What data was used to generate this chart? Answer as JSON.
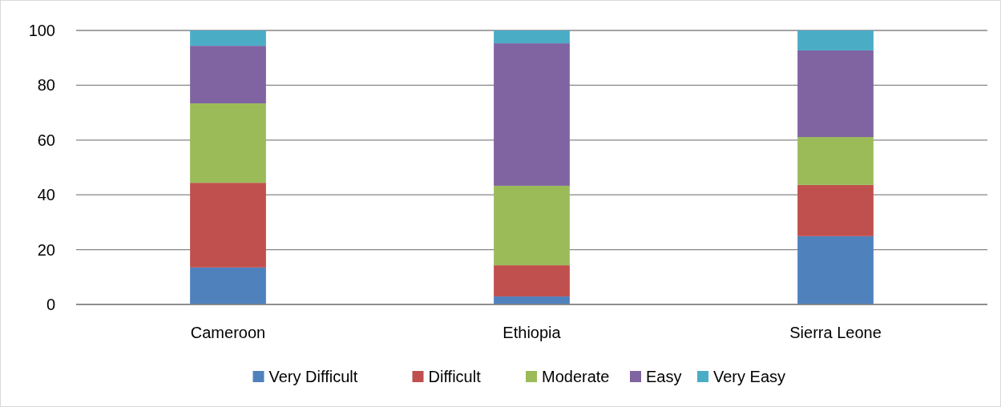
{
  "chart_data": {
    "type": "bar",
    "stacked": true,
    "categories": [
      "Cameroon",
      "Ethiopia",
      "Sierra Leone"
    ],
    "series": [
      {
        "name": "Very Difficult",
        "color": "#4f81bd",
        "values": [
          13.5,
          2.9,
          24.9
        ]
      },
      {
        "name": "Difficult",
        "color": "#c0504d",
        "values": [
          30.9,
          11.4,
          18.7
        ]
      },
      {
        "name": "Moderate",
        "color": "#9bbb59",
        "values": [
          29.0,
          29.0,
          17.5
        ]
      },
      {
        "name": "Easy",
        "color": "#8064a2",
        "values": [
          21.0,
          52.0,
          31.6
        ]
      },
      {
        "name": "Very Easy",
        "color": "#4bacc6",
        "values": [
          5.6,
          4.7,
          7.3
        ]
      }
    ],
    "ylim": [
      0,
      100
    ],
    "yticks": [
      0,
      20,
      40,
      60,
      80,
      100
    ],
    "grid": "y",
    "legend": "bottom"
  }
}
